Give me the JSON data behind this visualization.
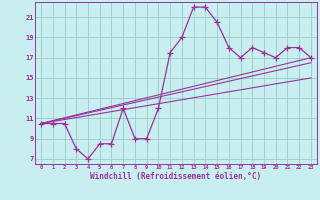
{
  "title": "",
  "xlabel": "Windchill (Refroidissement éolien,°C)",
  "bg_color": "#c8eef0",
  "line_color": "#993399",
  "grid_color": "#99cccc",
  "xlim": [
    -0.5,
    23.5
  ],
  "ylim": [
    6.5,
    22.5
  ],
  "yticks": [
    7,
    9,
    11,
    13,
    15,
    17,
    19,
    21
  ],
  "xticks": [
    0,
    1,
    2,
    3,
    4,
    5,
    6,
    7,
    8,
    9,
    10,
    11,
    12,
    13,
    14,
    15,
    16,
    17,
    18,
    19,
    20,
    21,
    22,
    23
  ],
  "main_x": [
    0,
    1,
    2,
    3,
    4,
    5,
    6,
    7,
    8,
    9,
    10,
    11,
    12,
    13,
    14,
    15,
    16,
    17,
    18,
    19,
    20,
    21,
    22,
    23
  ],
  "main_y": [
    10.5,
    10.5,
    10.5,
    8.0,
    7.0,
    8.5,
    8.5,
    12.0,
    9.0,
    9.0,
    12.0,
    17.5,
    19.0,
    22.0,
    22.0,
    20.5,
    18.0,
    17.0,
    18.0,
    17.5,
    17.0,
    18.0,
    18.0,
    17.0
  ],
  "line1_x": [
    0,
    23
  ],
  "line1_y": [
    10.5,
    17.0
  ],
  "line2_x": [
    0,
    23
  ],
  "line2_y": [
    10.5,
    16.5
  ],
  "line3_x": [
    0,
    23
  ],
  "line3_y": [
    10.5,
    15.0
  ]
}
